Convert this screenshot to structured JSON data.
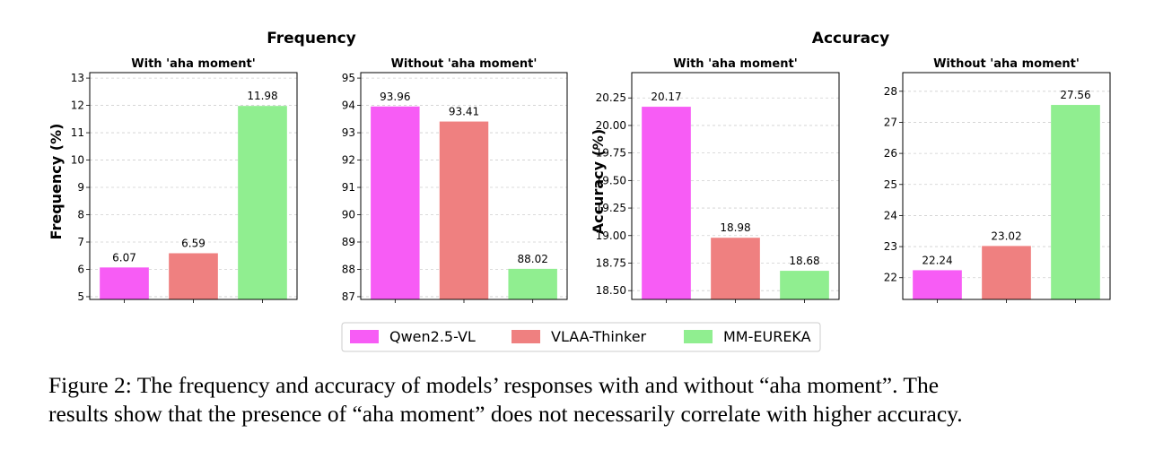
{
  "figure": {
    "group_titles": [
      "Frequency",
      "Accuracy"
    ],
    "legend": [
      {
        "name": "Qwen2.5-VL",
        "color": "#f75cf5"
      },
      {
        "name": "VLAA-Thinker",
        "color": "#ef8080"
      },
      {
        "name": "MM-EUREKA",
        "color": "#90ee90"
      }
    ],
    "caption_lines": [
      "Figure 2: The frequency and accuracy of models’ responses with and without “aha moment”. The",
      "results show that the presence of “aha moment” does not necessarily correlate with higher accuracy."
    ]
  },
  "chart_data": [
    {
      "type": "bar",
      "title": "With 'aha moment'",
      "ylabel": "Frequency (%)",
      "categories": [
        "Qwen2.5-VL",
        "VLAA-Thinker",
        "MM-EUREKA"
      ],
      "values": [
        6.07,
        6.59,
        11.98
      ],
      "value_labels": [
        "6.07",
        "6.59",
        "11.98"
      ],
      "ylim": [
        4.9,
        13.2
      ],
      "yticks": [
        5,
        6,
        7,
        8,
        9,
        10,
        11,
        12,
        13
      ],
      "ytick_labels": [
        "5",
        "6",
        "7",
        "8",
        "9",
        "10",
        "11",
        "12",
        "13"
      ],
      "grid": true
    },
    {
      "type": "bar",
      "title": "Without 'aha moment'",
      "ylabel": "",
      "categories": [
        "Qwen2.5-VL",
        "VLAA-Thinker",
        "MM-EUREKA"
      ],
      "values": [
        93.96,
        93.41,
        88.02
      ],
      "value_labels": [
        "93.96",
        "93.41",
        "88.02"
      ],
      "ylim": [
        86.9,
        95.2
      ],
      "yticks": [
        87,
        88,
        89,
        90,
        91,
        92,
        93,
        94,
        95
      ],
      "ytick_labels": [
        "87",
        "88",
        "89",
        "90",
        "91",
        "92",
        "93",
        "94",
        "95"
      ],
      "grid": true
    },
    {
      "type": "bar",
      "title": "With 'aha moment'",
      "ylabel": "Accuracy (%)",
      "categories": [
        "Qwen2.5-VL",
        "VLAA-Thinker",
        "MM-EUREKA"
      ],
      "values": [
        20.17,
        18.98,
        18.68
      ],
      "value_labels": [
        "20.17",
        "18.98",
        "18.68"
      ],
      "ylim": [
        18.42,
        20.48
      ],
      "yticks": [
        18.5,
        18.75,
        19.0,
        19.25,
        19.5,
        19.75,
        20.0,
        20.25
      ],
      "ytick_labels": [
        "18.50",
        "18.75",
        "19.00",
        "19.25",
        "19.50",
        "19.75",
        "20.00",
        "20.25"
      ],
      "grid": true
    },
    {
      "type": "bar",
      "title": "Without 'aha moment'",
      "ylabel": "",
      "categories": [
        "Qwen2.5-VL",
        "VLAA-Thinker",
        "MM-EUREKA"
      ],
      "values": [
        22.24,
        23.02,
        27.56
      ],
      "value_labels": [
        "22.24",
        "23.02",
        "27.56"
      ],
      "ylim": [
        21.3,
        28.6
      ],
      "yticks": [
        22,
        23,
        24,
        25,
        26,
        27,
        28
      ],
      "ytick_labels": [
        "22",
        "23",
        "24",
        "25",
        "26",
        "27",
        "28"
      ],
      "grid": true
    }
  ]
}
